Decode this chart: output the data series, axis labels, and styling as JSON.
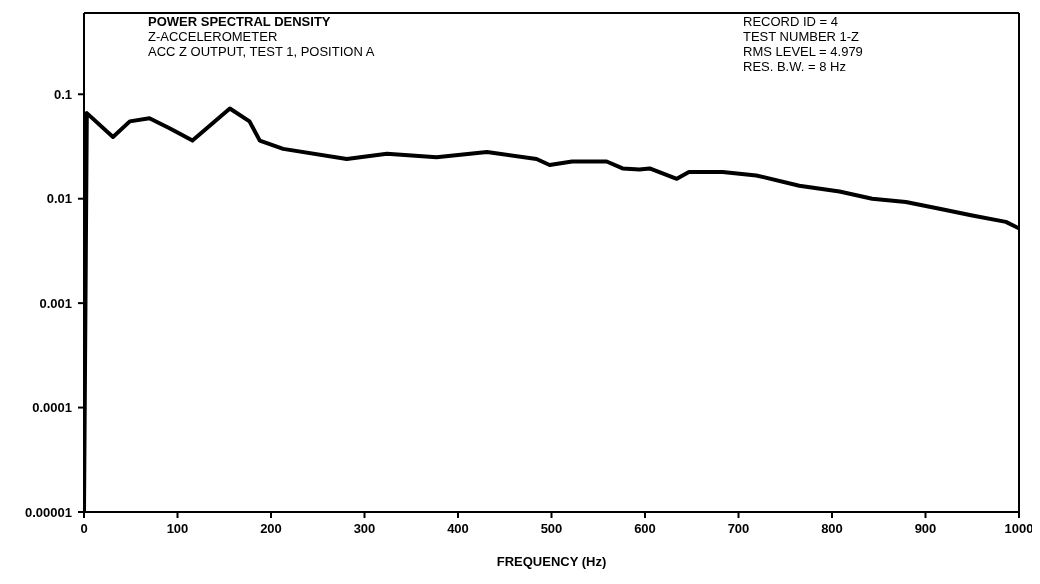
{
  "chart_data": {
    "type": "line",
    "title": "POWER SPECTRAL DENSITY",
    "annotations": [
      "Z-ACCELEROMETER",
      "ACC Z OUTPUT, TEST 1, POSITION A",
      "RECORD ID = 4",
      "TEST NUMBER 1-Z",
      "RMS LEVEL = 4.979",
      "RES. B.W. = 8 Hz"
    ],
    "xlabel": "FREQUENCY (Hz)",
    "log": "y",
    "xlim": [
      0,
      1000
    ],
    "xticks": [
      0,
      100,
      200,
      300,
      400,
      500,
      600,
      700,
      800,
      900,
      1000
    ],
    "ylim": [
      1e-05,
      0.6
    ],
    "yticks": [
      {
        "value": 1e-05,
        "label": "0.00001"
      },
      {
        "value": 0.0001,
        "label": "0.0001"
      },
      {
        "value": 0.001,
        "label": "0.001"
      },
      {
        "value": 0.01,
        "label": "0.01"
      },
      {
        "value": 0.1,
        "label": "0.1"
      }
    ],
    "series": [
      {
        "color": "#000000",
        "x": [
          0,
          3,
          31,
          49,
          70,
          92,
          116,
          156,
          177,
          188,
          213,
          281,
          324,
          377,
          431,
          484,
          498,
          522,
          559,
          576,
          594,
          605,
          634,
          647,
          683,
          719,
          765,
          808,
          843,
          879,
          915,
          950,
          986,
          1000
        ],
        "values": [
          1e-05,
          0.066,
          0.039,
          0.055,
          0.059,
          0.047,
          0.036,
          0.073,
          0.055,
          0.036,
          0.03,
          0.024,
          0.027,
          0.025,
          0.028,
          0.024,
          0.021,
          0.0227,
          0.0227,
          0.0195,
          0.019,
          0.0195,
          0.0155,
          0.018,
          0.018,
          0.0167,
          0.0133,
          0.0117,
          0.01,
          0.0093,
          0.008,
          0.0069,
          0.006,
          0.0052
        ]
      }
    ]
  }
}
